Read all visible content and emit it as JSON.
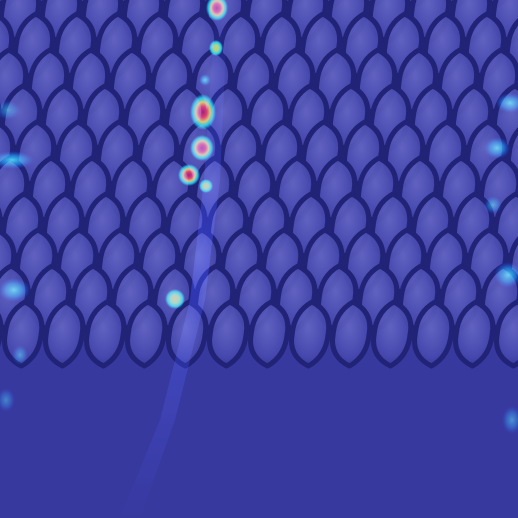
{
  "image": {
    "kind": "heatmap-overlay-on-textured-mesh",
    "colors": {
      "base_blue": "#3a3c9c",
      "cell_face": "#5a5cb8",
      "cell_edge": "#23256f",
      "heat_cyan": "#00e5ff",
      "heat_yellow": "#ffe600",
      "heat_red": "#e00000"
    }
  }
}
